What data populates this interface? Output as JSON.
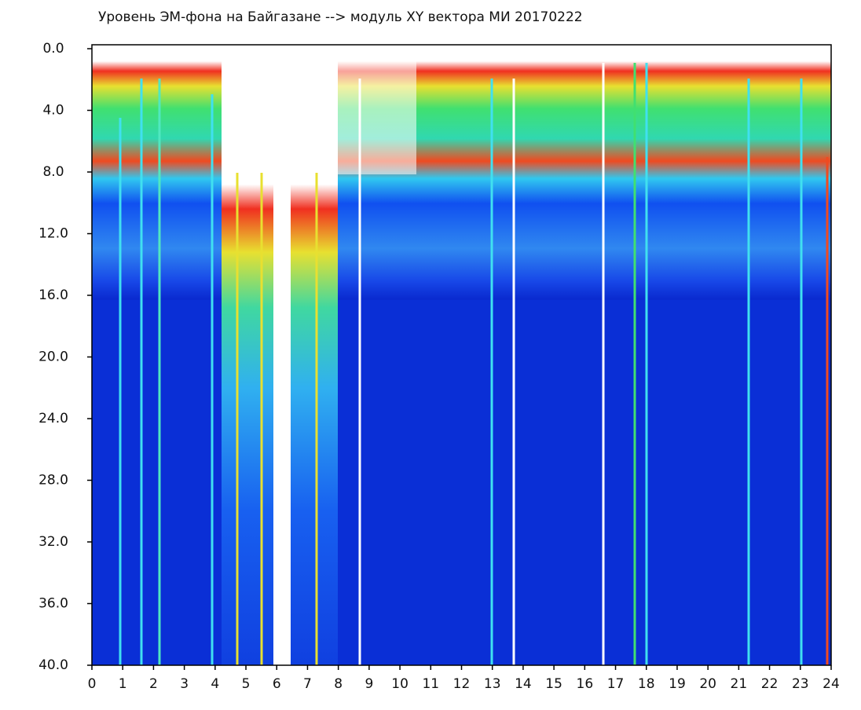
{
  "chart_data": {
    "type": "heatmap",
    "title": "Уровень ЭМ-фона на Байгазане  --> модуль XY вектора МИ  20170222",
    "xlim": [
      0,
      24
    ],
    "ylim": [
      0,
      40
    ],
    "y_inverted": true,
    "xticks": [
      0,
      1,
      2,
      3,
      4,
      5,
      6,
      7,
      8,
      9,
      10,
      11,
      12,
      13,
      14,
      15,
      16,
      17,
      18,
      19,
      20,
      21,
      22,
      23,
      24
    ],
    "yticks": [
      {
        "value": 0,
        "label": "0.0"
      },
      {
        "value": 4,
        "label": "4.0"
      },
      {
        "value": 8,
        "label": "8.0"
      },
      {
        "value": 12,
        "label": "12.0"
      },
      {
        "value": 16,
        "label": "16.0"
      },
      {
        "value": 20,
        "label": "20.0"
      },
      {
        "value": 24,
        "label": "24.0"
      },
      {
        "value": 28,
        "label": "28.0"
      },
      {
        "value": 32,
        "label": "32.0"
      },
      {
        "value": 36,
        "label": "36.0"
      },
      {
        "value": 40,
        "label": "40.0"
      }
    ]
  }
}
